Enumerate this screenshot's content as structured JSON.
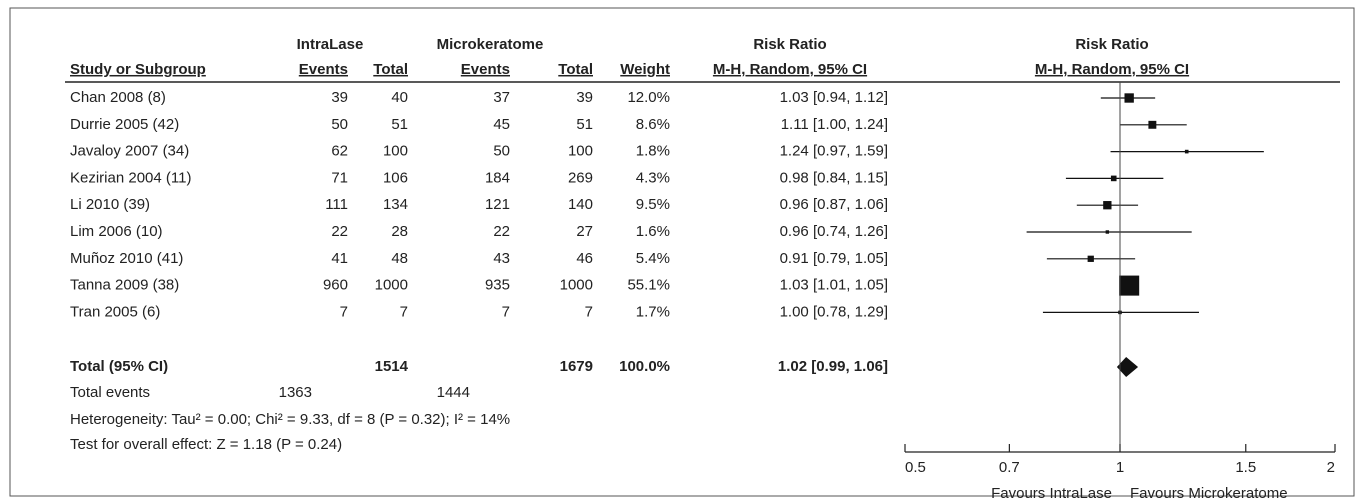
{
  "chart_data": {
    "type": "forest",
    "group_headers": [
      "IntraLase",
      "Microkeratome",
      "Risk Ratio",
      "Risk Ratio"
    ],
    "column_headers": [
      "Study or Subgroup",
      "Events",
      "Total",
      "Events",
      "Total",
      "Weight",
      "M-H, Random, 95% CI",
      "M-H, Random, 95% CI"
    ],
    "studies": [
      {
        "name": "Chan 2008 (8)",
        "events1": 39,
        "total1": 40,
        "events2": 37,
        "total2": 39,
        "weight": 12.0,
        "weight_label": "12.0%",
        "rr": 1.03,
        "ci": [
          0.94,
          1.12
        ],
        "rr_label": "1.03 [0.94, 1.12]"
      },
      {
        "name": "Durrie 2005 (42)",
        "events1": 50,
        "total1": 51,
        "events2": 45,
        "total2": 51,
        "weight": 8.6,
        "weight_label": "8.6%",
        "rr": 1.11,
        "ci": [
          1.0,
          1.24
        ],
        "rr_label": "1.11 [1.00, 1.24]"
      },
      {
        "name": "Javaloy 2007 (34)",
        "events1": 62,
        "total1": 100,
        "events2": 50,
        "total2": 100,
        "weight": 1.8,
        "weight_label": "1.8%",
        "rr": 1.24,
        "ci": [
          0.97,
          1.59
        ],
        "rr_label": "1.24 [0.97, 1.59]"
      },
      {
        "name": "Kezirian 2004 (11)",
        "events1": 71,
        "total1": 106,
        "events2": 184,
        "total2": 269,
        "weight": 4.3,
        "weight_label": "4.3%",
        "rr": 0.98,
        "ci": [
          0.84,
          1.15
        ],
        "rr_label": "0.98 [0.84, 1.15]"
      },
      {
        "name": "Li 2010 (39)",
        "events1": 111,
        "total1": 134,
        "events2": 121,
        "total2": 140,
        "weight": 9.5,
        "weight_label": "9.5%",
        "rr": 0.96,
        "ci": [
          0.87,
          1.06
        ],
        "rr_label": "0.96 [0.87, 1.06]"
      },
      {
        "name": "Lim 2006 (10)",
        "events1": 22,
        "total1": 28,
        "events2": 22,
        "total2": 27,
        "weight": 1.6,
        "weight_label": "1.6%",
        "rr": 0.96,
        "ci": [
          0.74,
          1.26
        ],
        "rr_label": "0.96 [0.74, 1.26]"
      },
      {
        "name": "Muñoz 2010 (41)",
        "events1": 41,
        "total1": 48,
        "events2": 43,
        "total2": 46,
        "weight": 5.4,
        "weight_label": "5.4%",
        "rr": 0.91,
        "ci": [
          0.79,
          1.05
        ],
        "rr_label": "0.91 [0.79, 1.05]"
      },
      {
        "name": "Tanna 2009 (38)",
        "events1": 960,
        "total1": 1000,
        "events2": 935,
        "total2": 1000,
        "weight": 55.1,
        "weight_label": "55.1%",
        "rr": 1.03,
        "ci": [
          1.01,
          1.05
        ],
        "rr_label": "1.03 [1.01, 1.05]"
      },
      {
        "name": "Tran 2005 (6)",
        "events1": 7,
        "total1": 7,
        "events2": 7,
        "total2": 7,
        "weight": 1.7,
        "weight_label": "1.7%",
        "rr": 1.0,
        "ci": [
          0.78,
          1.29
        ],
        "rr_label": "1.00 [0.78, 1.29]"
      }
    ],
    "total": {
      "name": "Total (95% CI)",
      "total1": 1514,
      "total2": 1679,
      "weight": 100.0,
      "weight_label": "100.0%",
      "rr": 1.02,
      "ci": [
        0.99,
        1.06
      ],
      "rr_label": "1.02 [0.99, 1.06]"
    },
    "total_events": {
      "name": "Total events",
      "values": [
        1363,
        1444
      ]
    },
    "heterogeneity": "Heterogeneity: Tau² = 0.00; Chi² = 9.33, df = 8 (P = 0.32); I² = 14%",
    "overall_effect": "Test for overall effect: Z = 1.18 (P = 0.24)",
    "xlim": [
      0.5,
      2
    ],
    "xticks": [
      0.5,
      0.7,
      1,
      1.5,
      2
    ],
    "log_scale": true,
    "xlabels": [
      "Favours IntraLase",
      "Favours Microkeratome"
    ],
    "color": "#111111"
  }
}
